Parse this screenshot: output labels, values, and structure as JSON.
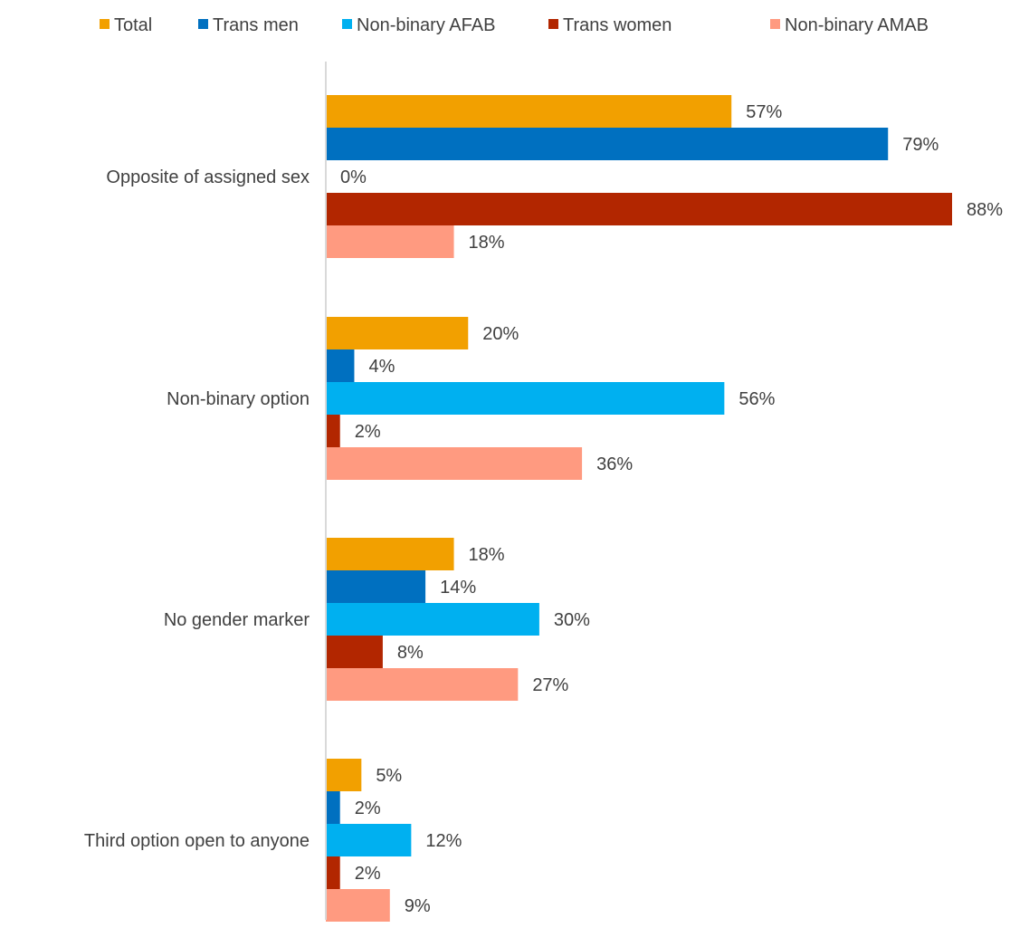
{
  "chart_data": {
    "type": "bar",
    "orientation": "horizontal",
    "categories": [
      "Opposite of assigned sex",
      "Non-binary option",
      "No gender marker",
      "Third option open to anyone"
    ],
    "series": [
      {
        "name": "Total",
        "color": "#F2A000",
        "values": [
          57,
          20,
          18,
          5
        ]
      },
      {
        "name": "Trans men",
        "color": "#0070C0",
        "values": [
          79,
          4,
          14,
          2
        ]
      },
      {
        "name": "Non-binary AFAB",
        "color": "#00B0F0",
        "values": [
          0,
          56,
          30,
          12
        ]
      },
      {
        "name": "Trans women",
        "color": "#B22600",
        "values": [
          88,
          2,
          8,
          2
        ]
      },
      {
        "name": "Non-binary AMAB",
        "color": "#FF9A80",
        "values": [
          18,
          36,
          27,
          9
        ]
      }
    ],
    "value_suffix": "%",
    "xlim": [
      0,
      88
    ],
    "legend_position": "top",
    "grid": false,
    "title": "",
    "xlabel": "",
    "ylabel": ""
  },
  "colors": {
    "text": "#404040",
    "axis": "#D9D9D9"
  }
}
